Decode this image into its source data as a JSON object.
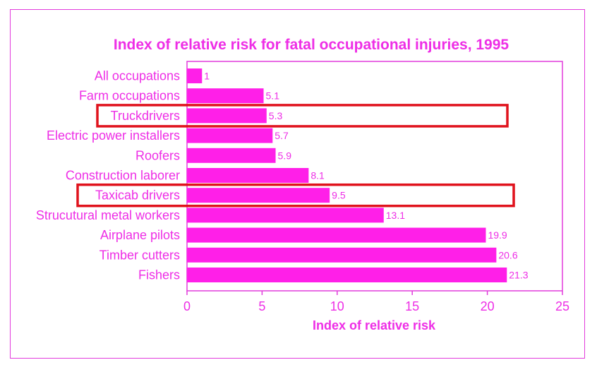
{
  "chart_data": {
    "type": "bar",
    "orientation": "horizontal",
    "title": "Index of relative risk for fatal occupational injuries, 1995",
    "xlabel": "Index of relative risk",
    "ylabel": "",
    "xlim": [
      0,
      25
    ],
    "xticks": [
      0,
      5,
      10,
      15,
      20,
      25
    ],
    "grid": false,
    "categories": [
      "All occupations",
      "Farm occupations",
      "Truckdrivers",
      "Electric power installers",
      "Roofers",
      "Construction laborer",
      "Taxicab drivers",
      "Strucutural metal workers",
      "Airplane pilots",
      "Timber cutters",
      "Fishers"
    ],
    "values": [
      1,
      5.1,
      5.3,
      5.7,
      5.9,
      8.1,
      9.5,
      13.1,
      19.9,
      20.6,
      21.3
    ],
    "value_labels": [
      "1",
      "5.1",
      "5.3",
      "5.7",
      "5.9",
      "8.1",
      "9.5",
      "13.1",
      "19.9",
      "20.6",
      "21.3"
    ],
    "highlighted_categories": [
      "Truckdrivers",
      "Taxicab drivers"
    ]
  },
  "colors": {
    "bar": "#ff1fe8",
    "text": "#ee2ee6",
    "axes": "#e23bdc",
    "highlight_box": "#e0121c",
    "frame": "#e23bdc"
  }
}
